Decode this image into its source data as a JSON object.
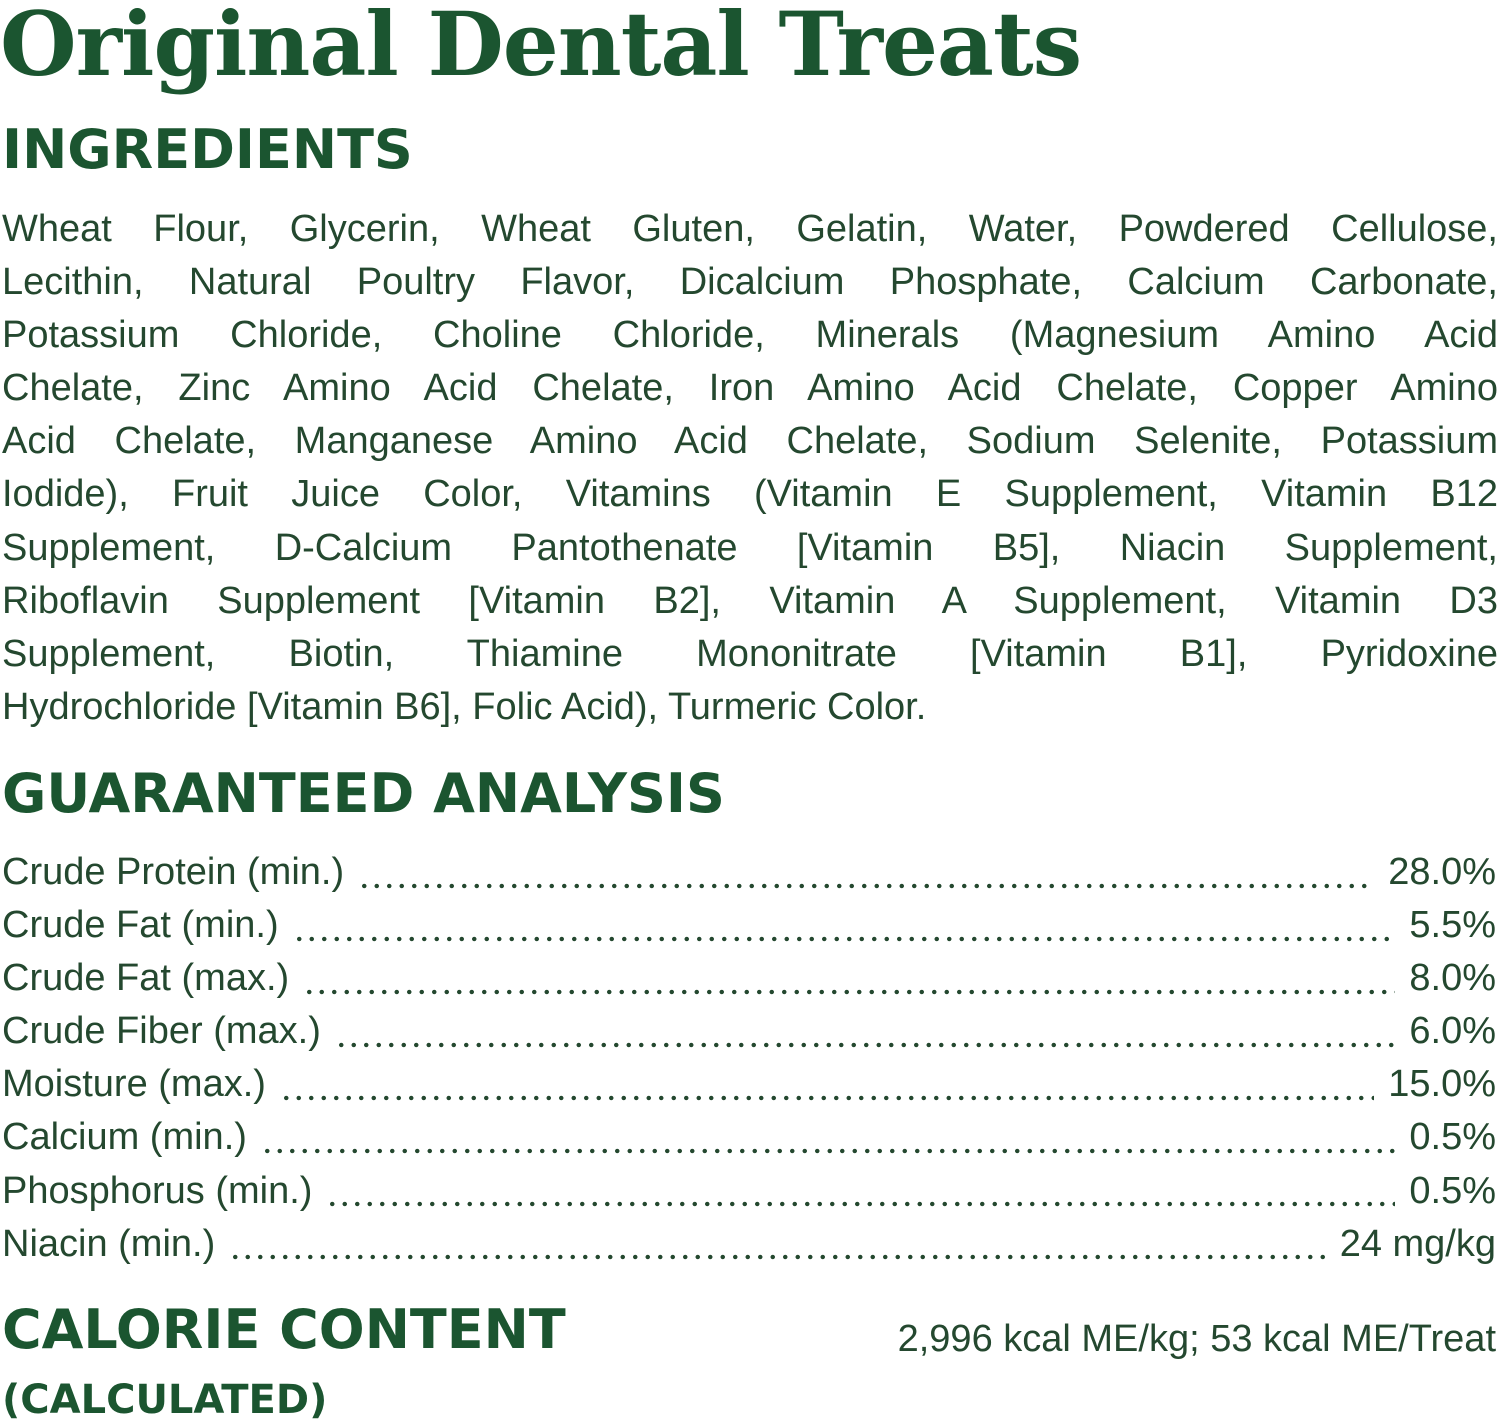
{
  "title": "Original Dental Treats",
  "ingredients": {
    "heading": "INGREDIENTS",
    "lines": [
      "Wheat Flour, Glycerin, Wheat Gluten, Gelatin, Water, Powdered Cellulose,",
      "Lecithin, Natural Poultry Flavor, Dicalcium Phosphate, Calcium Carbonate,",
      "Potassium Chloride, Choline Chloride, Minerals (Magnesium Amino Acid",
      "Chelate, Zinc Amino Acid Chelate, Iron Amino Acid Chelate, Copper Amino",
      "Acid Chelate, Manganese Amino Acid Chelate, Sodium Selenite, Potassium",
      "Iodide), Fruit Juice Color, Vitamins (Vitamin E Supplement, Vitamin B12",
      "Supplement, D-Calcium Pantothenate [Vitamin B5], Niacin Supplement,",
      "Riboflavin Supplement [Vitamin B2], Vitamin A Supplement, Vitamin D3",
      "Supplement, Biotin, Thiamine Mononitrate [Vitamin B1], Pyridoxine",
      "Hydrochloride [Vitamin B6], Folic Acid), Turmeric Color."
    ]
  },
  "analysis": {
    "heading": "GUARANTEED ANALYSIS",
    "rows": [
      {
        "label": "Crude Protein (min.)",
        "value": "28.0%"
      },
      {
        "label": "Crude Fat (min.)",
        "value": "5.5%"
      },
      {
        "label": "Crude Fat (max.)",
        "value": "8.0%"
      },
      {
        "label": "Crude Fiber (max.)",
        "value": "6.0%"
      },
      {
        "label": "Moisture (max.)",
        "value": "15.0%"
      },
      {
        "label": "Calcium (min.)",
        "value": "0.5%"
      },
      {
        "label": "Phosphorus (min.)",
        "value": "0.5%"
      },
      {
        "label": "Niacin (min.)",
        "value": "24 mg/kg"
      }
    ]
  },
  "calorie": {
    "heading": "CALORIE CONTENT",
    "subheading": "(CALCULATED)",
    "value": "2,996 kcal ME/kg; 53 kcal ME/Treat"
  },
  "colors": {
    "heading": "#1b5530",
    "text": "#24482f"
  }
}
